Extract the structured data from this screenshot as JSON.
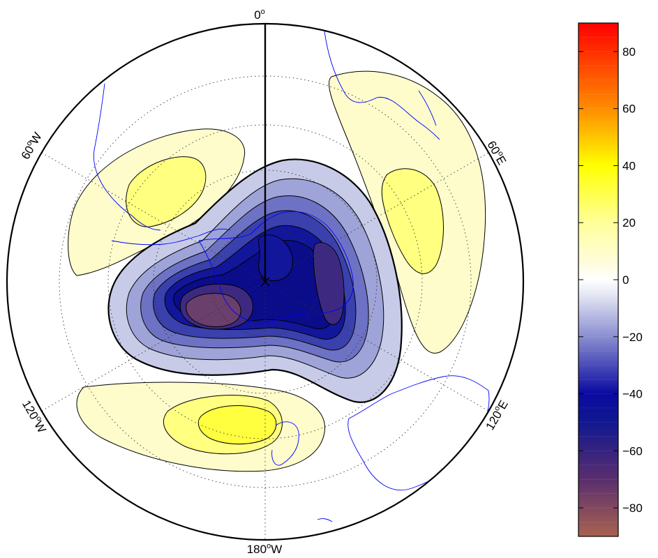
{
  "chart_data": {
    "type": "heatmap",
    "projection": "south-polar-stereographic",
    "title": "",
    "longitude_labels": [
      {
        "text": "0",
        "deg": "o",
        "suffix": ""
      },
      {
        "text": "60",
        "deg": "o",
        "suffix": "E"
      },
      {
        "text": "120",
        "deg": "o",
        "suffix": "E"
      },
      {
        "text": "180",
        "deg": "o",
        "suffix": "W"
      },
      {
        "text": "120",
        "deg": "o",
        "suffix": "W"
      },
      {
        "text": "60",
        "deg": "o",
        "suffix": "W"
      }
    ],
    "colorbar": {
      "min": -90,
      "max": 90,
      "ticks": [
        {
          "value": 80,
          "label": "80"
        },
        {
          "value": 60,
          "label": "60"
        },
        {
          "value": 40,
          "label": "40"
        },
        {
          "value": 20,
          "label": "20"
        },
        {
          "value": 0,
          "label": "0"
        },
        {
          "value": -20,
          "label": "−20"
        },
        {
          "value": -40,
          "label": "−40"
        },
        {
          "value": -60,
          "label": "−60"
        },
        {
          "value": -80,
          "label": "−80"
        }
      ],
      "color_stops": [
        {
          "value": -90,
          "color": "#a8624f"
        },
        {
          "value": -70,
          "color": "#5a2e6e"
        },
        {
          "value": -50,
          "color": "#101890"
        },
        {
          "value": -40,
          "color": "#0a0aa0"
        },
        {
          "value": -20,
          "color": "#8a8ed0"
        },
        {
          "value": -5,
          "color": "#e6e8f4"
        },
        {
          "value": 0,
          "color": "#ffffff"
        },
        {
          "value": 5,
          "color": "#fffce0"
        },
        {
          "value": 20,
          "color": "#ffff99"
        },
        {
          "value": 40,
          "color": "#ffff00"
        },
        {
          "value": 60,
          "color": "#ff8c00"
        },
        {
          "value": 90,
          "color": "#ff0000"
        }
      ]
    },
    "contour_colors": {
      "pos1": "#fffccc",
      "pos2": "#ffff80",
      "pos3": "#ffff40",
      "neg1": "#c8cbe8",
      "neg2": "#9ea3d8",
      "neg3": "#6e72c4",
      "neg4": "#3a40ac",
      "neg5": "#12169a",
      "neg6": "#0a0c8a",
      "neg7": "#3d2a80",
      "neg8": "#6a3f6c",
      "neg9": "#8a4f5c"
    },
    "coastline_color": "#0000ff",
    "grid": true
  }
}
